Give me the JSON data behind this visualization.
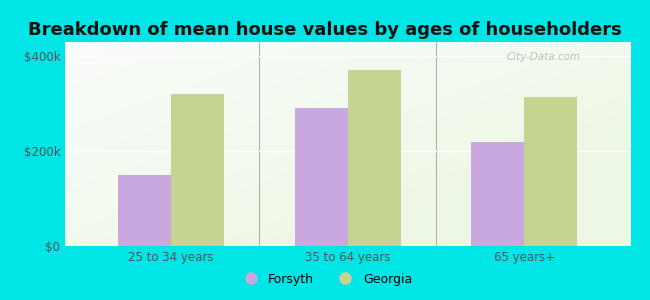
{
  "title": "Breakdown of mean house values by ages of householders",
  "categories": [
    "25 to 34 years",
    "35 to 64 years",
    "65 years+"
  ],
  "forsyth_values": [
    150000,
    290000,
    220000
  ],
  "georgia_values": [
    320000,
    370000,
    315000
  ],
  "forsyth_color": "#c9a8e0",
  "georgia_color": "#c5d490",
  "background_color": "#00e5e5",
  "yticks": [
    0,
    200000,
    400000
  ],
  "ytick_labels": [
    "$0",
    "$200k",
    "$400k"
  ],
  "ylim": [
    0,
    430000
  ],
  "bar_width": 0.3,
  "legend_forsyth": "Forsyth",
  "legend_georgia": "Georgia",
  "title_fontsize": 13,
  "tick_fontsize": 8.5,
  "legend_fontsize": 9,
  "watermark": "City-Data.com"
}
